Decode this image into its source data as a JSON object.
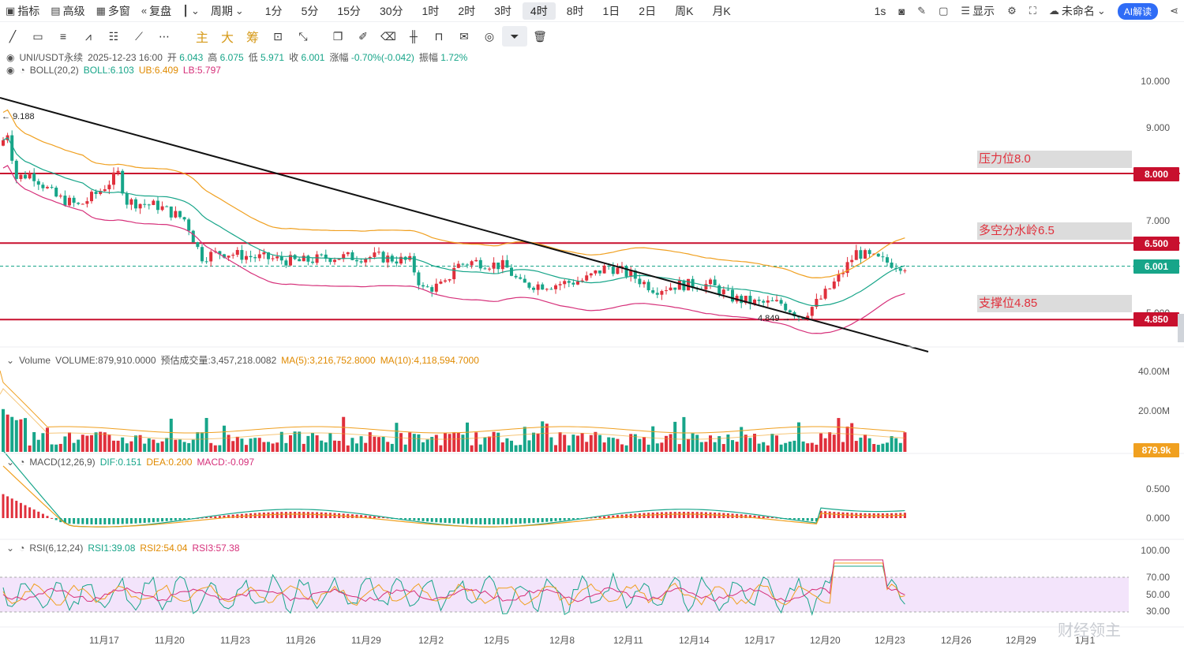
{
  "topbar": {
    "indicator_label": "指标",
    "advanced_label": "高级",
    "multiwindow_label": "多窗",
    "replay_label": "复盘",
    "period_label": "周期",
    "periods": [
      "1分",
      "5分",
      "15分",
      "30分",
      "1时",
      "2时",
      "3时",
      "4时",
      "8时",
      "1日",
      "2日",
      "周K",
      "月K"
    ],
    "active_period": "4时",
    "interval_1s": "1s",
    "display_label": "显示",
    "unnamed_label": "未命名",
    "ai_label": "AI解读"
  },
  "drawing_tools": {
    "main_label": "主",
    "big_label": "大",
    "chip_label": "筹"
  },
  "legend": {
    "symbol": "UNI/USDT永续",
    "datetime": "2025-12-23 16:00",
    "open_label": "开",
    "open": "6.043",
    "high_label": "高",
    "high": "6.075",
    "low_label": "低",
    "low": "5.971",
    "close_label": "收",
    "close": "6.001",
    "change_label": "涨幅",
    "change": "-0.70%(-0.042)",
    "amplitude_label": "振幅",
    "amplitude": "1.72%",
    "boll_name": "BOLL(20,2)",
    "boll_mid": "BOLL:6.103",
    "boll_ub": "UB:6.409",
    "boll_lb": "LB:5.797"
  },
  "price_axis": {
    "ticks": [
      "10.000",
      "9.000",
      "7.000",
      "5.000"
    ],
    "tags": {
      "resistance": "8.000",
      "watershed": "6.500",
      "current": "6.001",
      "support": "4.850"
    }
  },
  "annotations": {
    "resistance": "压力位8.0",
    "watershed": "多空分水岭6.5",
    "support": "支撑位4.85",
    "high_marker": "9.188",
    "low_marker": "4.849"
  },
  "volume": {
    "name": "Volume",
    "value": "VOLUME:879,910.0000",
    "est_label": "预估成交量:3,457,218.0082",
    "ma5": "MA(5):3,216,752.8000",
    "ma10": "MA(10):4,118,594.7000",
    "ticks": [
      "40.00M",
      "20.00M"
    ],
    "tag": "879.9k"
  },
  "macd": {
    "name": "MACD(12,26,9)",
    "dif": "DIF:0.151",
    "dea": "DEA:0.200",
    "macd": "MACD:-0.097",
    "ticks": [
      "0.500",
      "0.000"
    ]
  },
  "rsi": {
    "name": "RSI(6,12,24)",
    "rsi1": "RSI1:39.08",
    "rsi2": "RSI2:54.04",
    "rsi3": "RSI3:57.38",
    "ticks": [
      "100.00",
      "70.00",
      "50.00",
      "30.00"
    ]
  },
  "x_axis": [
    "11月17",
    "11月20",
    "11月23",
    "11月26",
    "11月29",
    "12月2",
    "12月5",
    "12月8",
    "12月11",
    "12月14",
    "12月17",
    "12月20",
    "12月23",
    "12月26",
    "12月29",
    "1月1"
  ],
  "watermark": "财经领主",
  "colors": {
    "up": "#e0303c",
    "down": "#17a589",
    "boll_mid": "#17a589",
    "boll_ub": "#f0a020",
    "boll_lb": "#d6307a",
    "accent": "#2f6cf6"
  }
}
